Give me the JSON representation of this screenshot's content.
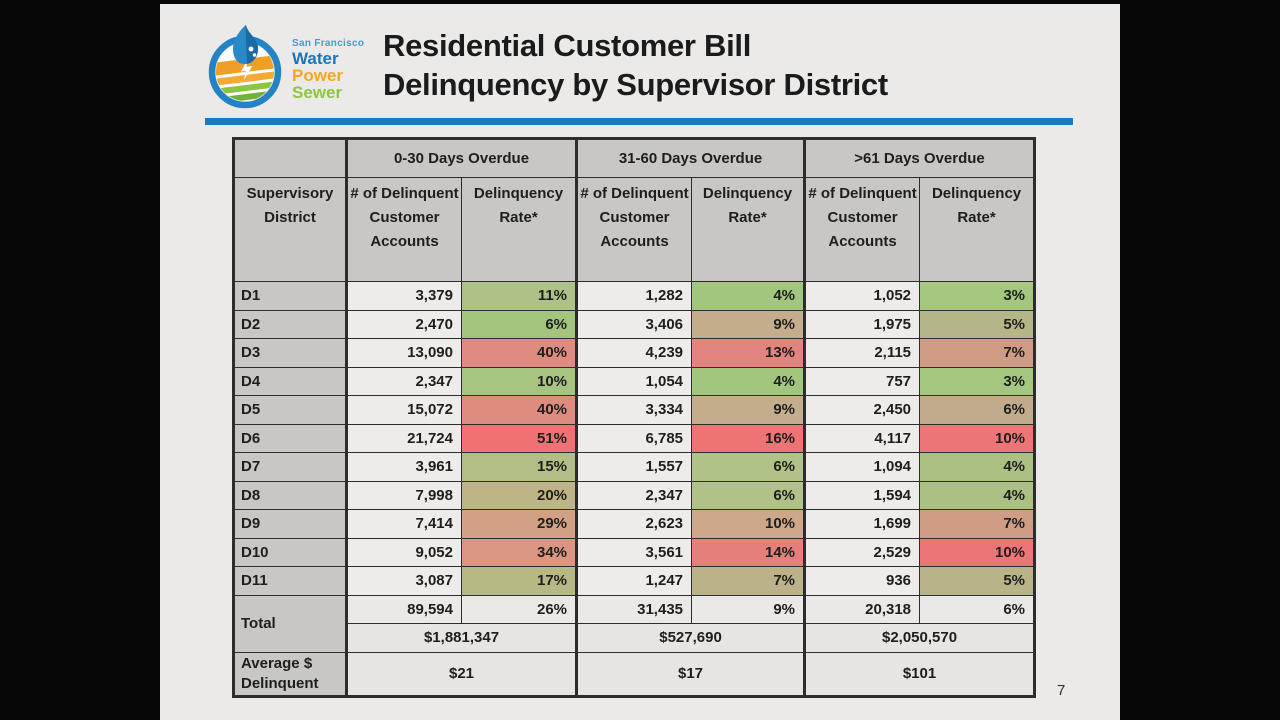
{
  "slide": {
    "title": {
      "line1": "Residential Customer Bill",
      "line2": "Delinquency by Supervisor District"
    },
    "accent_color": "#1b78bd",
    "page_number": "7",
    "logo": {
      "tagline": "San Francisco",
      "tagline_color": "#3f9fca",
      "words": [
        {
          "text": "Water",
          "color": "#1b75bb"
        },
        {
          "text": "Power",
          "color": "#f5a623"
        },
        {
          "text": "Sewer",
          "color": "#8dc63f"
        }
      ]
    }
  },
  "table": {
    "bands": [
      "0-30 Days Overdue",
      "31-60 Days Overdue",
      ">61 Days Overdue"
    ],
    "headers": {
      "district": "Supervisory District",
      "count": "# of Delinquent Customer Accounts",
      "rate": "Delinquency Rate*"
    },
    "rows": [
      {
        "district": "D1",
        "cols": [
          {
            "count": "3,379",
            "rate": "11%",
            "color": "#aec187"
          },
          {
            "count": "1,282",
            "rate": "4%",
            "color": "#a3c67f"
          },
          {
            "count": "1,052",
            "rate": "3%",
            "color": "#a4c67e"
          }
        ]
      },
      {
        "district": "D2",
        "cols": [
          {
            "count": "2,470",
            "rate": "6%",
            "color": "#a3c57e"
          },
          {
            "count": "3,406",
            "rate": "9%",
            "color": "#c4ad8d"
          },
          {
            "count": "1,975",
            "rate": "5%",
            "color": "#b5b687"
          }
        ]
      },
      {
        "district": "D3",
        "cols": [
          {
            "count": "13,090",
            "rate": "40%",
            "color": "#e08b81"
          },
          {
            "count": "4,239",
            "rate": "13%",
            "color": "#e1837e"
          },
          {
            "count": "2,115",
            "rate": "7%",
            "color": "#d09b85"
          }
        ]
      },
      {
        "district": "D4",
        "cols": [
          {
            "count": "2,347",
            "rate": "10%",
            "color": "#a8c481"
          },
          {
            "count": "1,054",
            "rate": "4%",
            "color": "#a3c67f"
          },
          {
            "count": "757",
            "rate": "3%",
            "color": "#a4c67e"
          }
        ]
      },
      {
        "district": "D5",
        "cols": [
          {
            "count": "15,072",
            "rate": "40%",
            "color": "#df8c80"
          },
          {
            "count": "3,334",
            "rate": "9%",
            "color": "#c4ad8d"
          },
          {
            "count": "2,450",
            "rate": "6%",
            "color": "#c2ab8c"
          }
        ]
      },
      {
        "district": "D6",
        "cols": [
          {
            "count": "21,724",
            "rate": "51%",
            "color": "#ef7174"
          },
          {
            "count": "6,785",
            "rate": "16%",
            "color": "#ed7374"
          },
          {
            "count": "4,117",
            "rate": "10%",
            "color": "#ea7677"
          }
        ]
      },
      {
        "district": "D7",
        "cols": [
          {
            "count": "3,961",
            "rate": "15%",
            "color": "#b3bd86"
          },
          {
            "count": "1,557",
            "rate": "6%",
            "color": "#b0c287"
          },
          {
            "count": "1,094",
            "rate": "4%",
            "color": "#abc183"
          }
        ]
      },
      {
        "district": "D8",
        "cols": [
          {
            "count": "7,998",
            "rate": "20%",
            "color": "#bfb485"
          },
          {
            "count": "2,347",
            "rate": "6%",
            "color": "#b0c287"
          },
          {
            "count": "1,594",
            "rate": "4%",
            "color": "#abc183"
          }
        ]
      },
      {
        "district": "D9",
        "cols": [
          {
            "count": "7,414",
            "rate": "29%",
            "color": "#d2a184"
          },
          {
            "count": "2,623",
            "rate": "10%",
            "color": "#cca78a"
          },
          {
            "count": "1,699",
            "rate": "7%",
            "color": "#cf9d85"
          }
        ]
      },
      {
        "district": "D10",
        "cols": [
          {
            "count": "9,052",
            "rate": "34%",
            "color": "#da9682"
          },
          {
            "count": "3,561",
            "rate": "14%",
            "color": "#e57f7b"
          },
          {
            "count": "2,529",
            "rate": "10%",
            "color": "#ea7677"
          }
        ]
      },
      {
        "district": "D11",
        "cols": [
          {
            "count": "3,087",
            "rate": "17%",
            "color": "#b6b984"
          },
          {
            "count": "1,247",
            "rate": "7%",
            "color": "#bcb289"
          },
          {
            "count": "936",
            "rate": "5%",
            "color": "#b9b389"
          }
        ]
      }
    ],
    "total": {
      "label": "Total",
      "counts": [
        "89,594",
        "31,435",
        "20,318"
      ],
      "rates": [
        "26%",
        "9%",
        "6%"
      ],
      "dollars": [
        "$1,881,347",
        "$527,690",
        "$2,050,570"
      ]
    },
    "average": {
      "label": "Average $ Delinquent",
      "values": [
        "$21",
        "$17",
        "$101"
      ]
    }
  }
}
